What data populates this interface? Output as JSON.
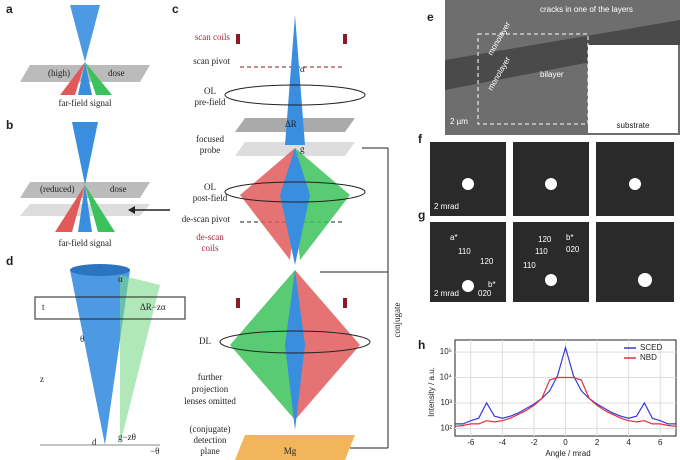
{
  "panel_a": {
    "label": "a",
    "high": "(high)",
    "dose": "dose",
    "signal": "far-field signal"
  },
  "panel_b": {
    "label": "b",
    "reduced": "(reduced)",
    "dose": "dose",
    "signal": "far-field signal"
  },
  "panel_c": {
    "label": "c",
    "scan_coils": "scan coils",
    "scan_pivot": "scan pivot",
    "ol_pre": [
      "OL",
      "pre-field"
    ],
    "delta_r": "ΔR",
    "probe": [
      "focused",
      "probe"
    ],
    "ol_post": [
      "OL",
      "post-field"
    ],
    "descan_pivot": "de-scan pivot",
    "descan_coils": [
      "de-scan",
      "coils"
    ],
    "dl": "DL",
    "omitted": [
      "further",
      "projection",
      "lenses omitted"
    ],
    "detection": [
      "(conjugate)",
      "detection",
      "plane"
    ],
    "mg": "Mg",
    "conjugate": "conjugate",
    "alpha": "α",
    "g": "g"
  },
  "panel_d": {
    "label": "d",
    "t": "t",
    "shift": "ΔR−zα",
    "alpha": "α",
    "theta": "θ",
    "z": "z",
    "d": "d",
    "g": "g−zθ",
    "neg_theta": "−θ"
  },
  "panel_e": {
    "label": "e",
    "cracks": "cracks in one of the layers",
    "mono1": "monolayer",
    "bilayer": "bilayer",
    "mono2": "monolayer",
    "scale": "2 µm",
    "substrate": "substrate"
  },
  "panel_f": {
    "label": "f",
    "scale": "2 mrad"
  },
  "panel_g": {
    "label": "g",
    "scale": "2 mrad",
    "left": [
      "a*",
      "110",
      "120",
      "b*",
      "020"
    ],
    "mid": [
      "b*",
      "120",
      "110",
      "020",
      "110"
    ]
  },
  "chart_data": {
    "type": "line",
    "label": "h",
    "xlabel": "Angle / mrad",
    "ylabel": "Intensity / a.u.",
    "log_y": true,
    "grid": true,
    "legend": "upper right",
    "x": [
      -7,
      -6.5,
      -6,
      -5.5,
      -5,
      -4.5,
      -4,
      -3.5,
      -3,
      -2.5,
      -2,
      -1.5,
      -1,
      -0.5,
      0,
      0.5,
      1,
      1.5,
      2,
      2.5,
      3,
      3.5,
      4,
      4.5,
      5,
      5.5,
      6,
      6.5,
      7
    ],
    "xlim": [
      -7,
      7
    ],
    "xticks": [
      -6,
      -4,
      -2,
      0,
      2,
      4,
      6
    ],
    "ylim": [
      50,
      300000
    ],
    "yticks": [
      {
        "value": 100,
        "label": "10²"
      },
      {
        "value": 1000,
        "label": "10³"
      },
      {
        "value": 10000,
        "label": "10⁴"
      },
      {
        "value": 100000,
        "label": "10⁵"
      }
    ],
    "series": [
      {
        "name": "SCED",
        "color": "#3a3ad8",
        "values": [
          150,
          150,
          200,
          250,
          1000,
          300,
          250,
          300,
          400,
          600,
          900,
          1500,
          3000,
          12000,
          150000,
          12000,
          3000,
          1500,
          900,
          600,
          400,
          300,
          250,
          300,
          1000,
          250,
          200,
          150,
          150
        ]
      },
      {
        "name": "NBD",
        "color": "#e0303a",
        "values": [
          120,
          130,
          150,
          150,
          200,
          180,
          200,
          250,
          350,
          500,
          800,
          1500,
          8000,
          10000,
          10000,
          10000,
          8000,
          1500,
          800,
          500,
          350,
          250,
          200,
          180,
          200,
          150,
          150,
          130,
          120
        ]
      }
    ]
  }
}
